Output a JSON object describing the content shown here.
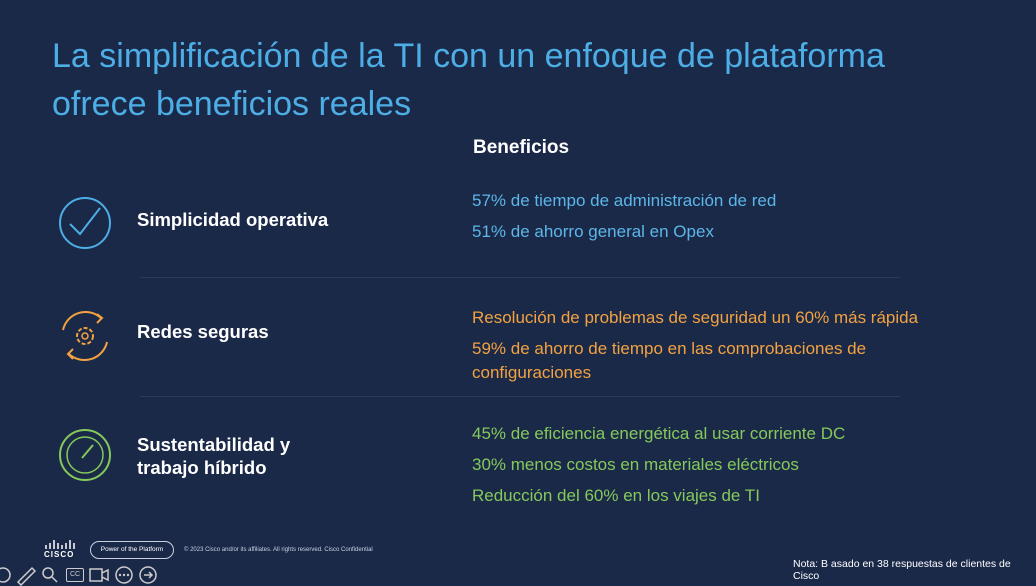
{
  "slide": {
    "title": "La simplificación de la TI con un enfoque de plataforma ofrece beneficios reales",
    "column_header": "Beneficios",
    "rows": [
      {
        "label": "Simplicidad operativa",
        "benefits": [
          "57% de tiempo de administración de red",
          "51% de ahorro general en Opex"
        ]
      },
      {
        "label": "Redes seguras",
        "benefits": [
          "Resolución de problemas de seguridad un 60% más rápida",
          "59% de ahorro de tiempo en las comprobaciones de configuraciones"
        ]
      },
      {
        "label": "Sustentabilidad y trabajo híbrido",
        "benefits": [
          "45% de eficiencia energética al usar corriente DC",
          "30% menos costos en materiales eléctricos",
          "Reducción del 60% en los viajes de TI"
        ]
      }
    ],
    "footer": {
      "logo": "CISCO",
      "badge": "Power of the Platform",
      "copyright": "© 2023  Cisco and/or its affiliates. All rights reserved.   Cisco Confidential",
      "note": "Nota: B asado en 38 respuestas de clientes de Cisco"
    }
  },
  "toolbar": {
    "captions": "CC"
  }
}
